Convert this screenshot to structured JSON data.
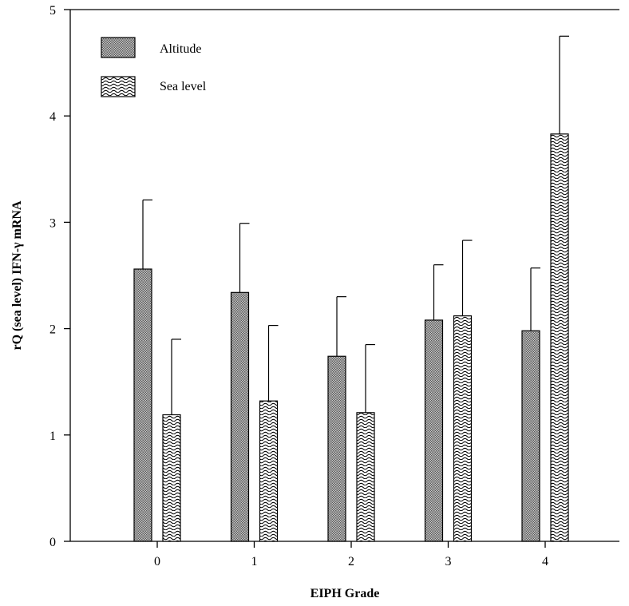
{
  "chart_data": {
    "type": "bar",
    "xlabel": "EIPH Grade",
    "ylabel": "rQ (sea level) IFN-γ mRNA",
    "categories": [
      "0",
      "1",
      "2",
      "3",
      "4"
    ],
    "ylim": [
      0,
      5
    ],
    "yticks": [
      "0",
      "1",
      "2",
      "3",
      "4",
      "5"
    ],
    "series": [
      {
        "name": "Altitude",
        "pattern": "crosshatch",
        "values": [
          2.56,
          2.34,
          1.74,
          2.08,
          1.98
        ],
        "errors": [
          0.65,
          0.65,
          0.56,
          0.52,
          0.59
        ]
      },
      {
        "name": "Sea level",
        "pattern": "wave",
        "values": [
          1.19,
          1.32,
          1.21,
          2.12,
          3.83
        ],
        "errors": [
          0.71,
          0.71,
          0.64,
          0.71,
          0.92
        ]
      }
    ],
    "legend_position": "top-left",
    "grid": false,
    "colors": {
      "bar_fill": "#9a9a9a",
      "bar_stroke": "#000000",
      "background": "#ffffff"
    }
  }
}
